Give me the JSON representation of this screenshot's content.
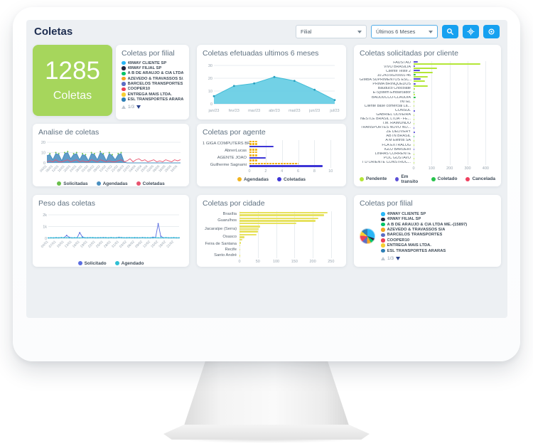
{
  "header": {
    "title": "Coletas",
    "filial_filter": "Filial",
    "period_filter": "Últimos 6 Meses",
    "buttons": [
      "search",
      "settings",
      "record"
    ]
  },
  "kpi": {
    "value": "1285",
    "label": "Coletas"
  },
  "colors": {
    "accent_blue": "#17a1f0",
    "kpi_green": "#a6d65c",
    "screen_bg": "#edf0f3",
    "title_navy": "#1d2d50"
  },
  "filial_top": {
    "title": "Coletas por filial",
    "pagination": "1/3",
    "items": [
      {
        "label": "49WAY CLIENTE SP",
        "color": "#29b6f6"
      },
      {
        "label": "49WAY FILIAL SP",
        "color": "#26263e"
      },
      {
        "label": "A B DE ARAUJO & CIA LTDA ...",
        "color": "#00c467"
      },
      {
        "label": "AZEVEDO & TRAVASSOS S/A",
        "color": "#f5a623"
      },
      {
        "label": "BARCELOS TRANSPORTES",
        "color": "#5d6dc3"
      },
      {
        "label": "COOPER10",
        "color": "#ee4056"
      },
      {
        "label": "ENTREGA MAIS LTDA.",
        "color": "#f6cf33"
      },
      {
        "label": "ESL TRANSPORTES ARARAS",
        "color": "#2e7fb5"
      }
    ]
  },
  "filial_bottom": {
    "title": "Coletas por filial",
    "pagination": "1/3",
    "items": [
      {
        "label": "49WAY CLIENTE SP",
        "color": "#29b6f6"
      },
      {
        "label": "49WAY FILIAL SP",
        "color": "#26263e"
      },
      {
        "label": "A B DE ARAUJO & CIA LTDA ME.-(15897)",
        "color": "#00c467"
      },
      {
        "label": "AZEVEDO & TRAVASSOS S/A",
        "color": "#f5a623"
      },
      {
        "label": "BARCELOS TRANSPORTES",
        "color": "#5d6dc3"
      },
      {
        "label": "COOPER10",
        "color": "#ee4056"
      },
      {
        "label": "ENTREGA MAIS LTDA.",
        "color": "#f6cf33"
      },
      {
        "label": "ESL TRANSPORTES ARARAS",
        "color": "#2e7fb5"
      }
    ],
    "pie": [
      {
        "color": "#29b6f6",
        "value": 30
      },
      {
        "color": "#26263e",
        "value": 5
      },
      {
        "color": "#00c467",
        "value": 7
      },
      {
        "color": "#f5a623",
        "value": 9
      },
      {
        "color": "#5d6dc3",
        "value": 11
      },
      {
        "color": "#ee4056",
        "value": 14
      },
      {
        "color": "#f6cf33",
        "value": 10
      },
      {
        "color": "#2e7fb5",
        "value": 14
      }
    ]
  },
  "chart_data": [
    {
      "id": "efetuadas",
      "type": "area",
      "title": "Coletas efetuadas ultimos 6 meses",
      "x": [
        "jan/23",
        "fev/23",
        "mar/23",
        "abr/23",
        "mai/23",
        "jun/23",
        "jul/23"
      ],
      "values": [
        6,
        14,
        16,
        21,
        18,
        11,
        3
      ],
      "ylim": [
        0,
        30
      ],
      "yticks": [
        0,
        10,
        20,
        30
      ],
      "color": "#5ecbe2",
      "stroke": "#3fbbd6",
      "marker": "#2aa0bf"
    },
    {
      "id": "analise",
      "type": "line",
      "title": "Analise de coletas",
      "labels": [
        "04/01",
        "08/01",
        "12/01",
        "16/01",
        "20/01",
        "24/01",
        "28/01",
        "01/02",
        "05/02",
        "09/02",
        "13/02",
        "17/02",
        "21/02",
        "08/03",
        "22/03",
        "04/04",
        "13/04",
        "25/04",
        "02/05",
        "08/05",
        "18/05",
        "29/05",
        "16/06"
      ],
      "ylim": [
        0,
        20
      ],
      "yticks": [
        0,
        10,
        20
      ],
      "series": [
        {
          "name": "Solicitadas",
          "color": "#6abf4b",
          "style": "dots",
          "values": [
            0,
            9,
            0,
            10,
            9,
            0,
            10,
            11,
            0,
            9,
            10,
            0,
            9,
            8,
            0,
            10,
            9,
            0,
            11,
            9,
            0,
            10,
            8,
            0,
            9,
            10,
            0,
            0,
            0,
            0,
            0,
            0,
            0,
            0,
            0,
            0,
            0,
            0,
            0,
            0,
            0,
            0,
            0,
            0,
            0,
            0
          ]
        },
        {
          "name": "Agendadas",
          "color": "#4a8fc0",
          "style": "area",
          "values": [
            7,
            8,
            3,
            9,
            8,
            2,
            9,
            10,
            4,
            8,
            9,
            3,
            8,
            7,
            2,
            9,
            8,
            3,
            10,
            8,
            2,
            9,
            7,
            3,
            8,
            9,
            1,
            0,
            0,
            0,
            0,
            0,
            0,
            0,
            0,
            0,
            0,
            0,
            0,
            0,
            0,
            0,
            0,
            0,
            0,
            0
          ]
        },
        {
          "name": "Coletadas",
          "color": "#e8546f",
          "style": "line",
          "values": [
            1,
            2,
            1,
            3,
            1,
            1,
            2,
            3,
            1,
            2,
            3,
            1,
            2,
            1,
            1,
            3,
            2,
            1,
            3,
            2,
            1,
            2,
            1,
            1,
            2,
            3,
            1,
            2,
            4,
            1,
            3,
            4,
            2,
            3,
            1,
            2,
            3,
            1,
            2,
            1,
            3,
            2,
            1,
            3,
            2,
            3
          ]
        }
      ]
    },
    {
      "id": "cliente",
      "type": "bar-h",
      "title": "Coletas solicitadas por cliente",
      "xlim": [
        0,
        430
      ],
      "xticks": [
        0,
        100,
        200,
        300,
        400
      ],
      "series": [
        {
          "name": "Pendente",
          "color": "#b4e637"
        },
        {
          "name": "Em transito",
          "color": "#5b4fd7"
        },
        {
          "name": "Coletado",
          "color": "#27c24c"
        },
        {
          "name": "Cancelada",
          "color": "#ef3f5e"
        }
      ],
      "rows": [
        {
          "label": "FAUSTÃO",
          "bars": [
            [
              1,
              25
            ],
            [
              0,
              370
            ]
          ]
        },
        {
          "label": "VIVO BRASILIA",
          "bars": [
            [
              1,
              6
            ],
            [
              0,
              130
            ]
          ]
        },
        {
          "label": "Cliente Teste 2",
          "bars": [
            [
              1,
              35
            ],
            [
              0,
              108
            ]
          ]
        },
        {
          "label": "10.243.662/0001-46",
          "bars": [
            [
              2,
              10
            ],
            [
              0,
              78
            ]
          ]
        },
        {
          "label": "GIMBA SUPRIMENTOS ESC...",
          "bars": [
            [
              1,
              40
            ],
            [
              0,
              62
            ]
          ]
        },
        {
          "label": "PRIMA BRINQUEDOS",
          "bars": [
            [
              1,
              12
            ],
            [
              0,
              80
            ]
          ]
        },
        {
          "label": "Bauduco Chocolate",
          "bars": [
            [
              0,
              8
            ]
          ]
        },
        {
          "label": "E-System Embarcador",
          "bars": [
            [
              2,
              5
            ],
            [
              0,
              6
            ]
          ]
        },
        {
          "label": "BAUDUCCO-CLAUDIA",
          "bars": [
            [
              2,
              12
            ]
          ]
        },
        {
          "label": "INTEL",
          "bars": [
            [
              0,
              4
            ]
          ]
        },
        {
          "label": "Cliente base comercial La...",
          "bars": [
            [
              0,
              3
            ]
          ]
        },
        {
          "label": "CONSUL",
          "bars": [
            [
              1,
              6
            ]
          ]
        },
        {
          "label": "GABRIEL OLIVEIRA",
          "bars": [
            [
              0,
              2
            ]
          ]
        },
        {
          "label": "NESTLE BRASIL LTDA - FE...",
          "bars": [
            [
              0,
              2
            ]
          ]
        },
        {
          "label": "T.M. RAIMUNDO",
          "bars": [
            [
              0,
              2
            ]
          ]
        },
        {
          "label": "TRANSPORTES NOVO NO...",
          "bars": [
            [
              1,
              4
            ]
          ]
        },
        {
          "label": "ZÉ DELIVERY",
          "bars": [
            [
              1,
              7
            ]
          ]
        },
        {
          "label": "ABTN BRASIL",
          "bars": [
            [
              2,
              3
            ]
          ]
        },
        {
          "label": "A M Eletros SA",
          "bars": [
            [
              0,
              2
            ]
          ]
        },
        {
          "label": "FCA EXTRALOG",
          "bars": [
            [
              0,
              2
            ]
          ]
        },
        {
          "label": "IGLU BARUERI",
          "bars": [
            [
              1,
              3
            ]
          ]
        },
        {
          "label": "LINHAS CORRENTE",
          "bars": [
            [
              0,
              1
            ]
          ]
        },
        {
          "label": "POC GUSTAVO",
          "bars": [
            [
              0,
              1
            ]
          ]
        },
        {
          "label": "T D ORIENTE CONSTRUC...",
          "bars": [
            [
              0,
              1
            ]
          ]
        }
      ]
    },
    {
      "id": "agente",
      "type": "bar-h",
      "title": "Coletas por agente",
      "xlim": [
        0,
        10.5
      ],
      "xticks": [
        0,
        2,
        4,
        6,
        8,
        10
      ],
      "series": [
        {
          "name": "Agendadas",
          "color": "#f2b41f",
          "dashed": true
        },
        {
          "name": "Coletadas",
          "color": "#3d35d6"
        }
      ],
      "rows": [
        {
          "label": "1 GIGA COMPUTERS BRAS...",
          "bars": [
            [
              0,
              1
            ],
            [
              0,
              1
            ],
            [
              1,
              3
            ]
          ]
        },
        {
          "label": "AbnerLucas",
          "bars": [
            [
              0,
              1
            ],
            [
              0,
              1
            ]
          ]
        },
        {
          "label": "AGENTE JOÃO",
          "bars": [
            [
              0,
              1
            ],
            [
              1,
              2
            ],
            [
              0,
              1
            ]
          ]
        },
        {
          "label": "Guilherme Sagnami",
          "bars": [
            [
              0,
              6
            ],
            [
              1,
              9
            ]
          ]
        }
      ]
    },
    {
      "id": "cidade",
      "type": "bar-h",
      "title": "Coletas por cidade",
      "xlim": [
        0,
        260
      ],
      "xticks": [
        0,
        50,
        100,
        150,
        200,
        250
      ],
      "show_legend": false,
      "series": [
        {
          "name": "Coletas",
          "color": "#e7e260"
        }
      ],
      "rows": [
        {
          "label": "Brasília",
          "bars": [
            [
              0,
              240
            ],
            [
              0,
              230
            ]
          ]
        },
        {
          "label": "Guarulhos",
          "bars": [
            [
              0,
              215
            ],
            [
              0,
              207
            ],
            [
              0,
              155
            ]
          ]
        },
        {
          "label": "Jacaraípe (Serra)",
          "bars": [
            [
              0,
              57
            ],
            [
              0,
              53
            ],
            [
              0,
              50
            ]
          ]
        },
        {
          "label": "Osasco",
          "bars": [
            [
              0,
              46
            ],
            [
              0,
              14
            ],
            [
              0,
              8
            ]
          ]
        },
        {
          "label": "Feira de Santana",
          "bars": [
            [
              0,
              4
            ],
            [
              0,
              2
            ]
          ]
        },
        {
          "label": "Recife",
          "bars": [
            [
              0,
              2
            ]
          ]
        },
        {
          "label": "Santo André",
          "bars": [
            [
              0,
              1
            ]
          ]
        }
      ]
    },
    {
      "id": "peso",
      "type": "line",
      "title": "Peso das coletas",
      "labels": [
        "04/01",
        "07/01",
        "10/01",
        "13/01",
        "16/01",
        "19/01",
        "22/01",
        "25/01",
        "28/01",
        "31/01",
        "03/02",
        "06/02",
        "09/02",
        "12/02",
        "15/02",
        "18/02",
        "21/02"
      ],
      "ylim": [
        0,
        2000
      ],
      "yticks": [
        0,
        1000,
        2000
      ],
      "ytick_labels": [
        "0",
        "1k",
        "2k"
      ],
      "series": [
        {
          "name": "Solicitado",
          "color": "#5b6ee1",
          "style": "line-markers",
          "values": [
            35,
            45,
            40,
            50,
            45,
            60,
            55,
            250,
            80,
            45,
            50,
            45,
            480,
            130,
            45,
            50,
            55,
            45,
            40,
            50,
            45,
            60,
            50,
            45,
            55,
            45,
            50,
            80,
            60,
            45,
            50,
            55,
            45,
            40,
            50,
            45,
            60,
            50,
            45,
            40,
            90,
            60,
            1250,
            180,
            45,
            55,
            40,
            45,
            50,
            40,
            45
          ]
        },
        {
          "name": "Agendado",
          "color": "#2fbfd4",
          "style": "line-markers",
          "values": [
            30,
            40,
            35,
            50,
            40,
            60,
            45,
            55,
            40,
            35,
            45,
            50,
            40,
            55,
            45,
            40,
            50,
            60,
            45,
            40,
            55,
            45,
            50,
            40,
            60,
            45,
            40,
            55,
            50,
            45,
            40,
            50,
            45,
            60,
            40,
            45,
            55,
            40,
            50,
            45,
            40,
            60,
            45,
            50,
            40,
            55,
            45,
            40,
            50,
            45,
            40
          ]
        }
      ]
    }
  ]
}
